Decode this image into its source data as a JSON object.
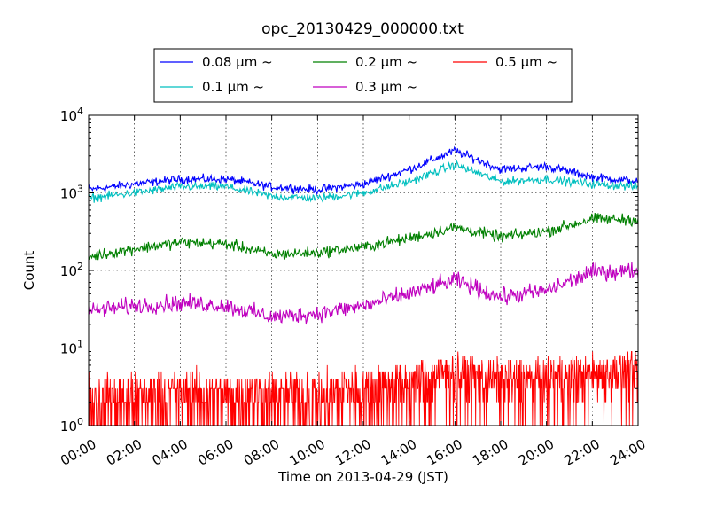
{
  "chart_data": {
    "type": "line",
    "title": "opc_20130429_000000.txt",
    "xlabel": "Time on 2013-04-29 (JST)",
    "ylabel": "Count",
    "yscale": "log",
    "ylim": [
      1,
      10000
    ],
    "xlim": [
      "00:00",
      "24:00"
    ],
    "x_ticks": [
      "00:00",
      "02:00",
      "04:00",
      "06:00",
      "08:00",
      "10:00",
      "12:00",
      "14:00",
      "16:00",
      "18:00",
      "20:00",
      "22:00",
      "24:00"
    ],
    "y_ticks": [
      {
        "value": 1,
        "base": "10",
        "exp": "0"
      },
      {
        "value": 10,
        "base": "10",
        "exp": "1"
      },
      {
        "value": 100,
        "base": "10",
        "exp": "2"
      },
      {
        "value": 1000,
        "base": "10",
        "exp": "3"
      },
      {
        "value": 10000,
        "base": "10",
        "exp": "4"
      }
    ],
    "grid": true,
    "legend_position": "top",
    "x_hours": [
      0,
      2,
      4,
      6,
      8,
      10,
      12,
      14,
      16,
      18,
      20,
      22,
      24
    ],
    "series": [
      {
        "name": "0.08 µm ~",
        "color": "#0000ff",
        "values": [
          1100,
          1300,
          1500,
          1500,
          1200,
          1100,
          1300,
          2000,
          3500,
          2000,
          2200,
          1600,
          1400
        ]
      },
      {
        "name": "0.1 µm ~",
        "color": "#00bfbf",
        "values": [
          850,
          1000,
          1200,
          1200,
          900,
          850,
          1000,
          1400,
          2300,
          1400,
          1500,
          1300,
          1200
        ]
      },
      {
        "name": "0.2 µm ~",
        "color": "#008000",
        "values": [
          150,
          190,
          230,
          220,
          160,
          170,
          200,
          260,
          360,
          270,
          320,
          460,
          450
        ]
      },
      {
        "name": "0.3 µm ~",
        "color": "#bf00bf",
        "values": [
          30,
          35,
          38,
          35,
          25,
          28,
          35,
          50,
          75,
          45,
          55,
          95,
          100
        ]
      },
      {
        "name": "0.5 µm ~",
        "color": "#ff0000",
        "values": [
          2,
          2.5,
          2.5,
          2.5,
          2.5,
          2.5,
          3,
          3.5,
          5,
          4,
          4,
          5,
          5
        ]
      }
    ]
  }
}
